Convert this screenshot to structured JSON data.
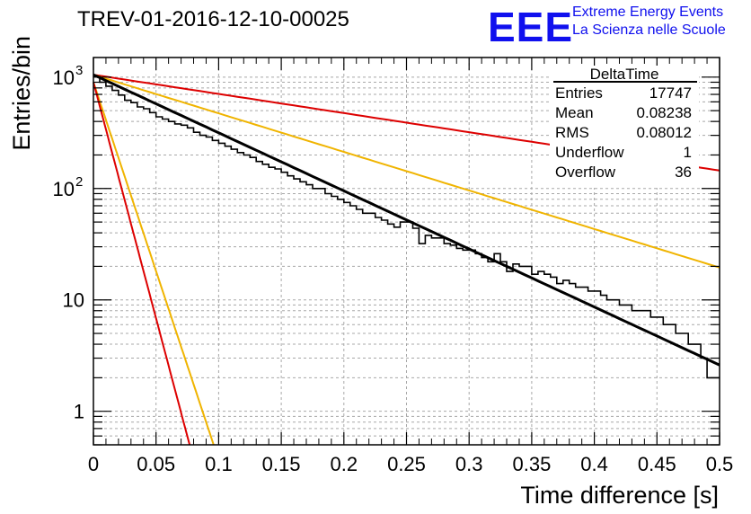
{
  "header": {
    "run_title": "TREV-01-2016-12-10-00025",
    "logo_text": "EEE",
    "logo_line1": "Extreme Energy Events",
    "logo_line2": "La Scienza nelle Scuole"
  },
  "stats_box": {
    "title": "DeltaTime",
    "rows": [
      {
        "label": "Entries",
        "value": "17747"
      },
      {
        "label": "Mean",
        "value": "0.08238"
      },
      {
        "label": "RMS",
        "value": "0.08012"
      },
      {
        "label": "Underflow",
        "value": "1"
      },
      {
        "label": "Overflow",
        "value": "36"
      }
    ]
  },
  "colors": {
    "histogram": "#000000",
    "fit": "#000000",
    "rate_curves_red": "#dd0000",
    "rate_curves_orange": "#f0b400",
    "grid": "#a8a8a8"
  },
  "chart_data": {
    "type": "histogram",
    "title": "TREV-01-2016-12-10-00025",
    "xlabel": "Time difference [s]",
    "ylabel": "Entries/bin",
    "y_scale": "log",
    "xlim": [
      0,
      0.5
    ],
    "ylim": [
      0.5,
      1500
    ],
    "grid": true,
    "x_ticks": [
      0,
      0.05,
      0.1,
      0.15,
      0.2,
      0.25,
      0.3,
      0.35,
      0.4,
      0.45,
      0.5
    ],
    "x_tick_labels": [
      "0",
      "0.05",
      "0.1",
      "0.15",
      "0.2",
      "0.25",
      "0.3",
      "0.35",
      "0.4",
      "0.45",
      "0.5"
    ],
    "y_major_ticks": [
      1,
      10,
      100,
      1000
    ],
    "y_tick_labels": [
      {
        "value": 1,
        "base": "1",
        "exp": ""
      },
      {
        "value": 10,
        "base": "10",
        "exp": ""
      },
      {
        "value": 100,
        "base": "10",
        "exp": "2"
      },
      {
        "value": 1000,
        "base": "10",
        "exp": "3"
      }
    ],
    "histogram": {
      "name": "DeltaTime",
      "bin_width": 0.005,
      "x_start": 0,
      "counts": [
        1010,
        900,
        830,
        760,
        690,
        620,
        590,
        540,
        520,
        480,
        440,
        420,
        400,
        380,
        370,
        350,
        320,
        300,
        290,
        270,
        255,
        240,
        225,
        210,
        200,
        190,
        175,
        165,
        155,
        150,
        140,
        130,
        122,
        115,
        108,
        100,
        100,
        90,
        85,
        80,
        75,
        70,
        65,
        60,
        60,
        55,
        52,
        48,
        45,
        50,
        50,
        44,
        32,
        38,
        36,
        36,
        32,
        31,
        29,
        28,
        28,
        26,
        24,
        22,
        26,
        22,
        18,
        21,
        20,
        20,
        17,
        18,
        17,
        16,
        14,
        15,
        14,
        13,
        13,
        12,
        12,
        11,
        10,
        10,
        9,
        9,
        8,
        8,
        8,
        7,
        7,
        6,
        6,
        5,
        5,
        4,
        4,
        3,
        2,
        2
      ]
    },
    "series": [
      {
        "name": "exponential fit",
        "color": "#000000",
        "type": "exponential",
        "y0": 1050,
        "y_at_xmax": 2.6
      },
      {
        "name": "red curve (slow)",
        "color": "#dd0000",
        "type": "exponential",
        "y0": 1050,
        "y_at_xmax": 145
      },
      {
        "name": "orange curve (medium)",
        "color": "#f0b400",
        "type": "exponential",
        "y0": 1050,
        "y_at_xmax": 19.5
      },
      {
        "name": "orange curve (steep)",
        "color": "#f0b400",
        "type": "exponential",
        "y0": 900,
        "y_at_x": [
          0.1,
          0.4
        ]
      },
      {
        "name": "red curve (steep)",
        "color": "#dd0000",
        "type": "exponential",
        "y0": 900,
        "y_at_x": [
          0.08,
          0.38
        ]
      }
    ]
  }
}
